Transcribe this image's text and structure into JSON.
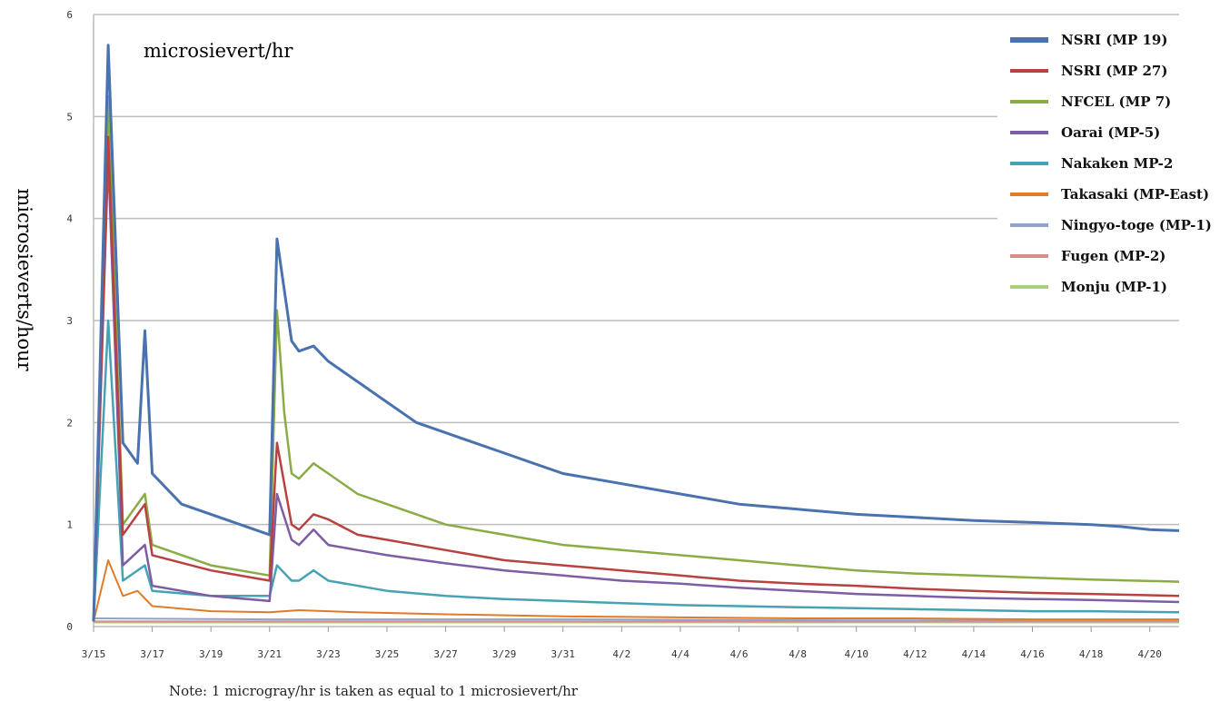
{
  "chart_data": {
    "type": "line",
    "title": "microsievert/hr",
    "ylabel": "microsieverts/hour",
    "xlabel": "",
    "note": "Note: 1 microgray/hr is taken as equal to 1 microsievert/hr",
    "ylim": [
      0,
      6
    ],
    "yticks": [
      "0",
      "1",
      "2",
      "3",
      "4",
      "5",
      "6"
    ],
    "x_range": [
      "3/15",
      "4/21"
    ],
    "xticks": [
      "3/15",
      "3/17",
      "3/19",
      "3/21",
      "3/23",
      "3/25",
      "3/27",
      "3/29",
      "3/31",
      "4/2",
      "4/4",
      "4/6",
      "4/8",
      "4/10",
      "4/12",
      "4/14",
      "4/16",
      "4/18",
      "4/20"
    ],
    "grid": true,
    "legend_position": "top-right",
    "series": [
      {
        "name": "NSRI (MP 19)",
        "color": "#4a72ae",
        "width": 3,
        "points": [
          [
            "3/15",
            0.05
          ],
          [
            "3/15 12h",
            5.7
          ],
          [
            "3/16",
            1.8
          ],
          [
            "3/16 12h",
            1.6
          ],
          [
            "3/16 18h",
            2.9
          ],
          [
            "3/17",
            1.5
          ],
          [
            "3/18",
            1.2
          ],
          [
            "3/19",
            1.1
          ],
          [
            "3/20",
            1.0
          ],
          [
            "3/21",
            0.9
          ],
          [
            "3/21 6h",
            3.8
          ],
          [
            "3/21 18h",
            2.8
          ],
          [
            "3/22",
            2.7
          ],
          [
            "3/22 12h",
            2.75
          ],
          [
            "3/23",
            2.6
          ],
          [
            "3/24",
            2.4
          ],
          [
            "3/25",
            2.2
          ],
          [
            "3/26",
            2.0
          ],
          [
            "3/27",
            1.9
          ],
          [
            "3/28",
            1.8
          ],
          [
            "3/29",
            1.7
          ],
          [
            "3/30",
            1.6
          ],
          [
            "3/31",
            1.5
          ],
          [
            "4/2",
            1.4
          ],
          [
            "4/4",
            1.3
          ],
          [
            "4/6",
            1.2
          ],
          [
            "4/8",
            1.15
          ],
          [
            "4/10",
            1.1
          ],
          [
            "4/12",
            1.07
          ],
          [
            "4/14",
            1.04
          ],
          [
            "4/16",
            1.02
          ],
          [
            "4/18",
            1.0
          ],
          [
            "4/19",
            0.98
          ],
          [
            "4/20",
            0.95
          ],
          [
            "4/21",
            0.94
          ]
        ]
      },
      {
        "name": "NSRI (MP 27)",
        "color": "#b84240",
        "width": 2.5,
        "points": [
          [
            "3/15",
            0.05
          ],
          [
            "3/15 12h",
            4.8
          ],
          [
            "3/16",
            0.9
          ],
          [
            "3/16 18h",
            1.2
          ],
          [
            "3/17",
            0.7
          ],
          [
            "3/19",
            0.55
          ],
          [
            "3/21",
            0.45
          ],
          [
            "3/21 6h",
            1.8
          ],
          [
            "3/21 18h",
            1.0
          ],
          [
            "3/22",
            0.95
          ],
          [
            "3/22 12h",
            1.1
          ],
          [
            "3/23",
            1.05
          ],
          [
            "3/24",
            0.9
          ],
          [
            "3/25",
            0.85
          ],
          [
            "3/27",
            0.75
          ],
          [
            "3/29",
            0.65
          ],
          [
            "3/31",
            0.6
          ],
          [
            "4/2",
            0.55
          ],
          [
            "4/4",
            0.5
          ],
          [
            "4/6",
            0.45
          ],
          [
            "4/8",
            0.42
          ],
          [
            "4/10",
            0.4
          ],
          [
            "4/12",
            0.37
          ],
          [
            "4/14",
            0.35
          ],
          [
            "4/16",
            0.33
          ],
          [
            "4/18",
            0.32
          ],
          [
            "4/21",
            0.3
          ]
        ]
      },
      {
        "name": "NFCEL (MP 7)",
        "color": "#8aac44",
        "width": 2.5,
        "points": [
          [
            "3/15",
            0.05
          ],
          [
            "3/15 12h",
            5.2
          ],
          [
            "3/16",
            1.0
          ],
          [
            "3/16 18h",
            1.3
          ],
          [
            "3/17",
            0.8
          ],
          [
            "3/19",
            0.6
          ],
          [
            "3/21",
            0.5
          ],
          [
            "3/21 6h",
            3.1
          ],
          [
            "3/21 12h",
            2.1
          ],
          [
            "3/21 18h",
            1.5
          ],
          [
            "3/22",
            1.45
          ],
          [
            "3/22 12h",
            1.6
          ],
          [
            "3/23",
            1.5
          ],
          [
            "3/24",
            1.3
          ],
          [
            "3/25",
            1.2
          ],
          [
            "3/26",
            1.1
          ],
          [
            "3/27",
            1.0
          ],
          [
            "3/29",
            0.9
          ],
          [
            "3/31",
            0.8
          ],
          [
            "4/2",
            0.75
          ],
          [
            "4/4",
            0.7
          ],
          [
            "4/6",
            0.65
          ],
          [
            "4/8",
            0.6
          ],
          [
            "4/10",
            0.55
          ],
          [
            "4/12",
            0.52
          ],
          [
            "4/14",
            0.5
          ],
          [
            "4/16",
            0.48
          ],
          [
            "4/18",
            0.46
          ],
          [
            "4/21",
            0.44
          ]
        ]
      },
      {
        "name": "Oarai (MP-5)",
        "color": "#7d5da3",
        "width": 2.5,
        "points": [
          [
            "3/15",
            0.05
          ],
          [
            "3/15 12h",
            4.6
          ],
          [
            "3/16",
            0.6
          ],
          [
            "3/16 18h",
            0.8
          ],
          [
            "3/17",
            0.4
          ],
          [
            "3/19",
            0.3
          ],
          [
            "3/21",
            0.25
          ],
          [
            "3/21 6h",
            1.3
          ],
          [
            "3/21 18h",
            0.85
          ],
          [
            "3/22",
            0.8
          ],
          [
            "3/22 12h",
            0.95
          ],
          [
            "3/23",
            0.8
          ],
          [
            "3/24",
            0.75
          ],
          [
            "3/25",
            0.7
          ],
          [
            "3/27",
            0.62
          ],
          [
            "3/29",
            0.55
          ],
          [
            "3/31",
            0.5
          ],
          [
            "4/2",
            0.45
          ],
          [
            "4/4",
            0.42
          ],
          [
            "4/6",
            0.38
          ],
          [
            "4/8",
            0.35
          ],
          [
            "4/10",
            0.32
          ],
          [
            "4/12",
            0.3
          ],
          [
            "4/14",
            0.28
          ],
          [
            "4/16",
            0.27
          ],
          [
            "4/18",
            0.26
          ],
          [
            "4/21",
            0.24
          ]
        ]
      },
      {
        "name": "Nakaken MP-2",
        "color": "#46a3b4",
        "width": 2.5,
        "points": [
          [
            "3/15",
            0.05
          ],
          [
            "3/15 12h",
            3.0
          ],
          [
            "3/16",
            0.45
          ],
          [
            "3/16 18h",
            0.6
          ],
          [
            "3/17",
            0.35
          ],
          [
            "3/19",
            0.3
          ],
          [
            "3/21",
            0.3
          ],
          [
            "3/21 6h",
            0.6
          ],
          [
            "3/21 18h",
            0.45
          ],
          [
            "3/22",
            0.45
          ],
          [
            "3/22 12h",
            0.55
          ],
          [
            "3/23",
            0.45
          ],
          [
            "3/25",
            0.35
          ],
          [
            "3/27",
            0.3
          ],
          [
            "3/29",
            0.27
          ],
          [
            "3/31",
            0.25
          ],
          [
            "4/2",
            0.23
          ],
          [
            "4/4",
            0.21
          ],
          [
            "4/6",
            0.2
          ],
          [
            "4/8",
            0.19
          ],
          [
            "4/10",
            0.18
          ],
          [
            "4/12",
            0.17
          ],
          [
            "4/14",
            0.16
          ],
          [
            "4/16",
            0.15
          ],
          [
            "4/18",
            0.15
          ],
          [
            "4/21",
            0.14
          ]
        ]
      },
      {
        "name": "Takasaki (MP-East)",
        "color": "#e07b2a",
        "width": 2,
        "points": [
          [
            "3/15",
            0.05
          ],
          [
            "3/15 12h",
            0.65
          ],
          [
            "3/16",
            0.3
          ],
          [
            "3/16 12h",
            0.35
          ],
          [
            "3/17",
            0.2
          ],
          [
            "3/19",
            0.15
          ],
          [
            "3/21",
            0.14
          ],
          [
            "3/22",
            0.16
          ],
          [
            "3/24",
            0.14
          ],
          [
            "3/27",
            0.12
          ],
          [
            "3/31",
            0.1
          ],
          [
            "4/4",
            0.09
          ],
          [
            "4/8",
            0.08
          ],
          [
            "4/12",
            0.08
          ],
          [
            "4/16",
            0.07
          ],
          [
            "4/21",
            0.07
          ]
        ]
      },
      {
        "name": "Ningyo-toge (MP-1)",
        "color": "#8ea4cf",
        "width": 2,
        "points": [
          [
            "3/15",
            0.08
          ],
          [
            "3/21",
            0.07
          ],
          [
            "3/31",
            0.07
          ],
          [
            "4/10",
            0.06
          ],
          [
            "4/21",
            0.06
          ]
        ]
      },
      {
        "name": "Fugen (MP-2)",
        "color": "#d98c8a",
        "width": 2,
        "points": [
          [
            "3/15",
            0.05
          ],
          [
            "3/21",
            0.05
          ],
          [
            "3/31",
            0.05
          ],
          [
            "4/10",
            0.05
          ],
          [
            "4/21",
            0.05
          ]
        ]
      },
      {
        "name": "Monju (MP-1)",
        "color": "#a7cf7c",
        "width": 2,
        "points": [
          [
            "3/15",
            0.04
          ],
          [
            "3/21",
            0.04
          ],
          [
            "3/31",
            0.04
          ],
          [
            "4/10",
            0.04
          ],
          [
            "4/21",
            0.04
          ]
        ]
      }
    ]
  }
}
